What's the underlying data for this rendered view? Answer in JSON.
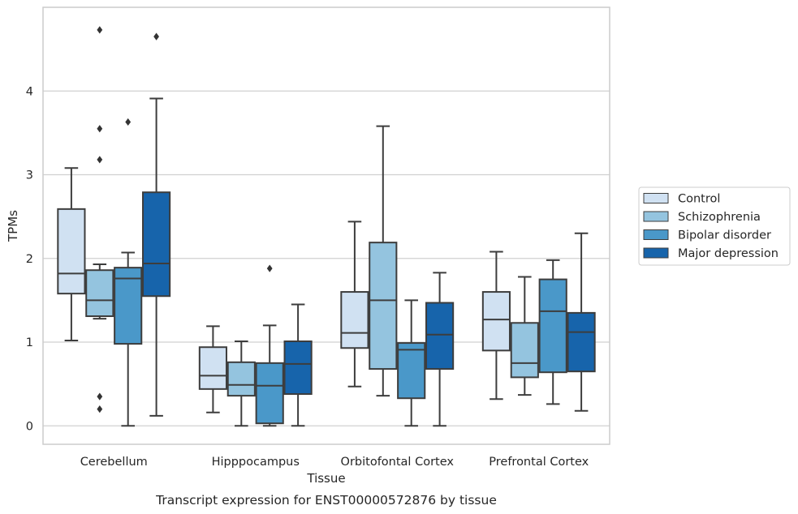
{
  "chart_data": {
    "type": "boxplot",
    "title": "Transcript expression for ENST00000572876 by tissue",
    "xlabel": "Tissue",
    "ylabel": "TPMs",
    "ylim": [
      -0.22,
      5.0
    ],
    "yticks": [
      0,
      1,
      2,
      3,
      4
    ],
    "categories": [
      "Cerebellum",
      "Hipppocampus",
      "Orbitofontal Cortex",
      "Prefrontal Cortex"
    ],
    "legend": {
      "position": "right",
      "entries": [
        "Control",
        "Schizophrenia",
        "Bipolar disorder",
        "Major depression"
      ]
    },
    "grid": "horizontal",
    "colors": {
      "Control": "#d0e1f2",
      "Schizophrenia": "#94c4df",
      "Bipolar disorder": "#4a98c9",
      "Major depression": "#1764ab",
      "edge": "#3d3d3d",
      "grid": "#d0d0d0",
      "frame": "#cccccc"
    },
    "series": [
      {
        "name": "Control",
        "boxes": [
          {
            "category": "Cerebellum",
            "whislo": 1.02,
            "q1": 1.58,
            "med": 1.82,
            "q3": 2.59,
            "whishi": 3.08,
            "fliers": []
          },
          {
            "category": "Hipppocampus",
            "whislo": 0.16,
            "q1": 0.44,
            "med": 0.6,
            "q3": 0.94,
            "whishi": 1.19,
            "fliers": []
          },
          {
            "category": "Orbitofontal Cortex",
            "whislo": 0.47,
            "q1": 0.93,
            "med": 1.11,
            "q3": 1.6,
            "whishi": 2.44,
            "fliers": []
          },
          {
            "category": "Prefrontal Cortex",
            "whislo": 0.32,
            "q1": 0.9,
            "med": 1.27,
            "q3": 1.6,
            "whishi": 2.08,
            "fliers": []
          }
        ]
      },
      {
        "name": "Schizophrenia",
        "boxes": [
          {
            "category": "Cerebellum",
            "whislo": 1.28,
            "q1": 1.31,
            "med": 1.5,
            "q3": 1.86,
            "whishi": 1.93,
            "fliers": [
              3.55,
              3.18,
              4.73,
              0.35,
              0.2
            ]
          },
          {
            "category": "Hipppocampus",
            "whislo": 0.0,
            "q1": 0.36,
            "med": 0.49,
            "q3": 0.76,
            "whishi": 1.01,
            "fliers": []
          },
          {
            "category": "Orbitofontal Cortex",
            "whislo": 0.36,
            "q1": 0.68,
            "med": 1.5,
            "q3": 2.19,
            "whishi": 3.58,
            "fliers": []
          },
          {
            "category": "Prefrontal Cortex",
            "whislo": 0.37,
            "q1": 0.58,
            "med": 0.75,
            "q3": 1.23,
            "whishi": 1.78,
            "fliers": []
          }
        ]
      },
      {
        "name": "Bipolar disorder",
        "boxes": [
          {
            "category": "Cerebellum",
            "whislo": 0.0,
            "q1": 0.98,
            "med": 1.76,
            "q3": 1.89,
            "whishi": 2.07,
            "fliers": [
              3.63
            ]
          },
          {
            "category": "Hipppocampus",
            "whislo": 0.0,
            "q1": 0.03,
            "med": 0.48,
            "q3": 0.75,
            "whishi": 1.2,
            "fliers": [
              1.88
            ]
          },
          {
            "category": "Orbitofontal Cortex",
            "whislo": 0.0,
            "q1": 0.33,
            "med": 0.91,
            "q3": 0.99,
            "whishi": 1.5,
            "fliers": []
          },
          {
            "category": "Prefrontal Cortex",
            "whislo": 0.26,
            "q1": 0.64,
            "med": 1.37,
            "q3": 1.75,
            "whishi": 1.98,
            "fliers": []
          }
        ]
      },
      {
        "name": "Major depression",
        "boxes": [
          {
            "category": "Cerebellum",
            "whislo": 0.12,
            "q1": 1.55,
            "med": 1.94,
            "q3": 2.79,
            "whishi": 3.91,
            "fliers": [
              4.65
            ]
          },
          {
            "category": "Hipppocampus",
            "whislo": 0.0,
            "q1": 0.38,
            "med": 0.74,
            "q3": 1.01,
            "whishi": 1.45,
            "fliers": []
          },
          {
            "category": "Orbitofontal Cortex",
            "whislo": 0.0,
            "q1": 0.68,
            "med": 1.09,
            "q3": 1.47,
            "whishi": 1.83,
            "fliers": []
          },
          {
            "category": "Prefrontal Cortex",
            "whislo": 0.18,
            "q1": 0.65,
            "med": 1.12,
            "q3": 1.35,
            "whishi": 2.3,
            "fliers": []
          }
        ]
      }
    ]
  }
}
